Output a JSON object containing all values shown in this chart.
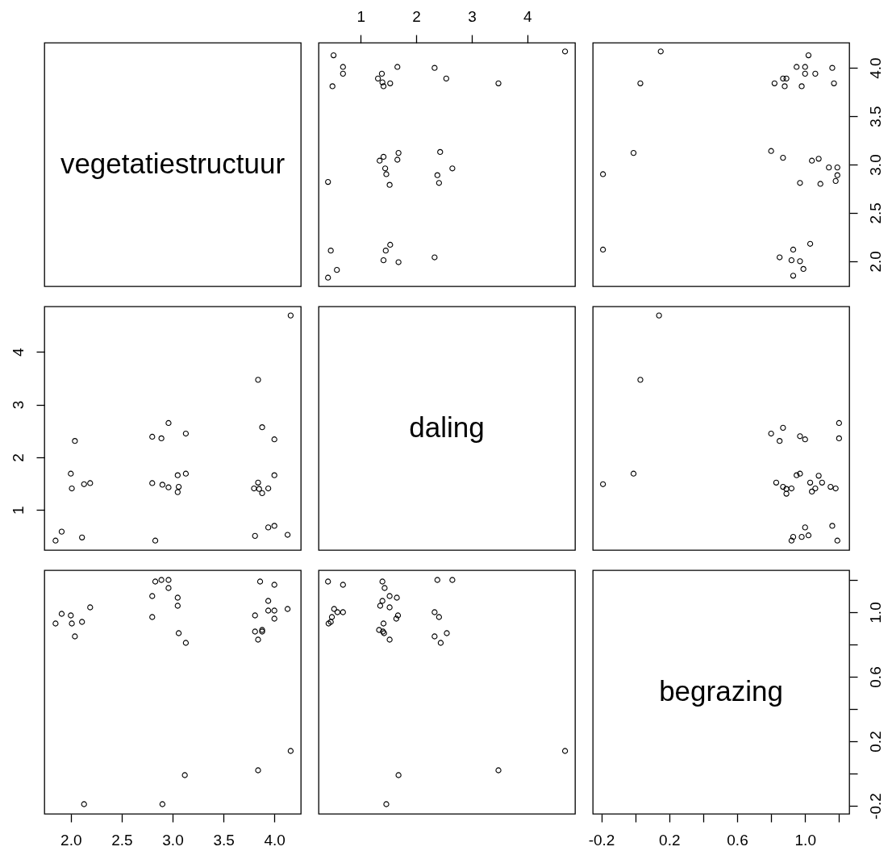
{
  "chart_data": [
    {
      "type": "other",
      "title": "vegetatiestructuur"
    },
    {
      "type": "scatter",
      "color": "#000000",
      "marker": "circle",
      "tick_labels": "x",
      "xlim": [
        0.24,
        4.86
      ],
      "xticks": [
        1,
        2,
        3,
        4
      ],
      "ylim": [
        1.74,
        4.26
      ],
      "x": [
        0.51,
        0.68,
        0.68,
        0.49,
        1.38,
        1.31,
        1.39,
        1.41,
        1.53,
        1.66,
        2.33,
        2.54,
        3.48,
        4.68,
        0.41,
        1.41,
        1.34,
        1.44,
        1.46,
        1.52,
        1.68,
        1.66,
        2.43,
        2.65,
        2.38,
        2.41,
        0.46,
        1.53,
        1.45,
        1.41,
        1.68,
        2.33,
        0.57,
        0.41
      ],
      "values": [
        4.13,
        4.01,
        3.94,
        3.81,
        3.94,
        3.89,
        3.85,
        3.81,
        3.84,
        4.01,
        4.0,
        3.89,
        3.84,
        4.17,
        2.82,
        3.08,
        3.04,
        2.96,
        2.9,
        2.79,
        3.12,
        3.05,
        3.13,
        2.96,
        2.89,
        2.81,
        2.11,
        2.17,
        2.11,
        2.01,
        1.99,
        2.04,
        1.91,
        1.83
      ]
    },
    {
      "type": "scatter",
      "color": "#000000",
      "marker": "circle",
      "tick_labels": "y",
      "xlim": [
        -0.25,
        1.26
      ],
      "ylim": [
        1.74,
        4.26
      ],
      "yticks": [
        {
          "value": 2,
          "label": "2.0"
        },
        2.5,
        {
          "value": 3,
          "label": "3.0"
        },
        3.5,
        {
          "value": 4,
          "label": "4.0"
        }
      ],
      "x": [
        0.15,
        0.03,
        -0.01,
        -0.19,
        -0.19,
        1.02,
        0.95,
        1.0,
        1.0,
        1.06,
        1.16,
        1.17,
        0.82,
        0.87,
        0.89,
        0.88,
        0.98,
        0.8,
        0.87,
        1.04,
        1.08,
        1.14,
        1.19,
        1.19,
        1.18,
        0.97,
        1.09,
        1.03,
        0.93,
        0.85,
        0.92,
        0.97,
        0.99,
        0.93
      ],
      "values": [
        4.17,
        3.84,
        3.12,
        2.9,
        2.12,
        4.13,
        4.01,
        4.01,
        3.94,
        3.94,
        4.0,
        3.84,
        3.84,
        3.89,
        3.89,
        3.81,
        3.81,
        3.14,
        3.07,
        3.04,
        3.06,
        2.97,
        2.97,
        2.89,
        2.83,
        2.81,
        2.8,
        2.18,
        2.12,
        2.04,
        2.01,
        2.0,
        1.92,
        1.85
      ]
    },
    {
      "type": "scatter",
      "color": "#000000",
      "marker": "circle",
      "tick_labels": "y",
      "xlim": [
        1.74,
        4.26
      ],
      "ylim": [
        0.24,
        4.86
      ],
      "yticks": [
        1,
        2,
        3,
        4
      ],
      "x": [
        4.16,
        3.84,
        3.88,
        4.0,
        4.0,
        3.84,
        3.8,
        3.85,
        3.88,
        3.94,
        3.94,
        4.0,
        3.81,
        4.13,
        2.96,
        2.8,
        2.89,
        3.13,
        2.8,
        2.9,
        2.96,
        3.05,
        3.13,
        3.06,
        3.05,
        2.83,
        2.04,
        2.0,
        2.01,
        2.13,
        2.19,
        1.85,
        1.91,
        2.11
      ],
      "values": [
        4.69,
        3.47,
        2.57,
        2.34,
        1.66,
        1.52,
        1.41,
        1.4,
        1.32,
        1.41,
        0.67,
        0.7,
        0.51,
        0.53,
        2.65,
        2.39,
        2.36,
        2.45,
        1.51,
        1.48,
        1.43,
        1.66,
        1.69,
        1.44,
        1.34,
        0.42,
        2.31,
        1.69,
        1.41,
        1.49,
        1.51,
        0.42,
        0.59,
        0.48
      ]
    },
    {
      "type": "other",
      "title": "daling"
    },
    {
      "type": "scatter",
      "color": "#000000",
      "marker": "circle",
      "tick_labels": false,
      "xlim": [
        -0.25,
        1.26
      ],
      "ylim": [
        0.24,
        4.86
      ],
      "x": [
        0.14,
        0.03,
        -0.01,
        -0.19,
        1.2,
        1.2,
        0.87,
        0.8,
        0.85,
        0.97,
        1.0,
        0.95,
        0.97,
        1.08,
        0.83,
        0.87,
        0.89,
        0.89,
        0.92,
        1.03,
        1.1,
        1.06,
        1.04,
        1.15,
        1.18,
        1.16,
        1.19,
        1.0,
        1.02,
        0.98,
        0.93,
        0.92
      ],
      "values": [
        4.69,
        3.47,
        1.69,
        1.49,
        2.65,
        2.36,
        2.56,
        2.45,
        2.31,
        2.4,
        2.34,
        1.66,
        1.69,
        1.65,
        1.52,
        1.44,
        1.4,
        1.31,
        1.41,
        1.52,
        1.52,
        1.41,
        1.35,
        1.44,
        1.41,
        0.7,
        0.42,
        0.67,
        0.52,
        0.49,
        0.49,
        0.42
      ]
    },
    {
      "type": "scatter",
      "color": "#000000",
      "marker": "circle",
      "tick_labels": "x",
      "xlim": [
        1.74,
        4.26
      ],
      "xticks": [
        {
          "value": 2,
          "label": "2.0"
        },
        2.5,
        {
          "value": 3,
          "label": "3.0"
        },
        3.5,
        {
          "value": 4,
          "label": "4.0"
        }
      ],
      "ylim": [
        -0.25,
        1.26
      ],
      "x": [
        2.13,
        2.9,
        3.12,
        3.84,
        4.16,
        1.85,
        1.91,
        2.0,
        2.01,
        2.11,
        2.19,
        2.04,
        2.83,
        2.89,
        2.96,
        2.96,
        2.8,
        3.05,
        3.05,
        2.8,
        3.06,
        3.13,
        3.86,
        4.0,
        3.94,
        3.94,
        4.0,
        4.0,
        4.13,
        3.81,
        3.81,
        3.88,
        3.88,
        3.84
      ],
      "values": [
        -0.19,
        -0.19,
        -0.01,
        0.02,
        0.14,
        0.93,
        0.99,
        0.98,
        0.93,
        0.94,
        1.03,
        0.85,
        1.19,
        1.2,
        1.2,
        1.15,
        1.1,
        1.09,
        1.04,
        0.97,
        0.87,
        0.81,
        1.19,
        1.17,
        1.07,
        1.01,
        1.01,
        0.96,
        1.02,
        0.98,
        0.88,
        0.89,
        0.88,
        0.83
      ]
    },
    {
      "type": "scatter",
      "color": "#000000",
      "marker": "circle",
      "tick_labels": false,
      "xlim": [
        0.24,
        4.86
      ],
      "ylim": [
        -0.25,
        1.26
      ],
      "x": [
        0.41,
        0.68,
        0.52,
        0.58,
        0.68,
        0.48,
        0.42,
        0.46,
        1.39,
        1.43,
        1.52,
        1.65,
        1.39,
        1.35,
        1.52,
        1.67,
        1.64,
        1.41,
        1.33,
        1.4,
        1.42,
        1.52,
        2.38,
        2.65,
        2.33,
        2.41,
        2.55,
        2.33,
        2.44,
        1.68,
        1.46,
        3.48,
        4.68
      ],
      "values": [
        1.19,
        1.17,
        1.02,
        1.0,
        1.0,
        0.97,
        0.93,
        0.94,
        1.19,
        1.15,
        1.1,
        1.09,
        1.07,
        1.04,
        1.03,
        0.98,
        0.96,
        0.93,
        0.89,
        0.88,
        0.87,
        0.83,
        1.2,
        1.2,
        1.0,
        0.97,
        0.87,
        0.85,
        0.81,
        -0.01,
        -0.19,
        0.02,
        0.14
      ]
    },
    {
      "type": "scatter",
      "title": "begrazing",
      "xlim": [
        -0.25,
        1.26
      ],
      "xticks": [
        -0.2,
        {
          "value": 0,
          "label": null
        },
        0.2,
        {
          "value": 0.4,
          "label": null
        },
        0.6,
        {
          "value": 0.8,
          "label": null
        },
        {
          "value": 1,
          "label": "1.0"
        },
        {
          "value": 1.2,
          "label": null
        }
      ],
      "ylim": [
        -0.25,
        1.26
      ],
      "yticks": [
        -0.2,
        {
          "value": 0,
          "label": null
        },
        0.2,
        {
          "value": 0.4,
          "label": null
        },
        0.6,
        {
          "value": 0.8,
          "label": null
        },
        {
          "value": 1,
          "label": "1.0"
        },
        {
          "value": 1.2,
          "label": null
        }
      ]
    }
  ]
}
